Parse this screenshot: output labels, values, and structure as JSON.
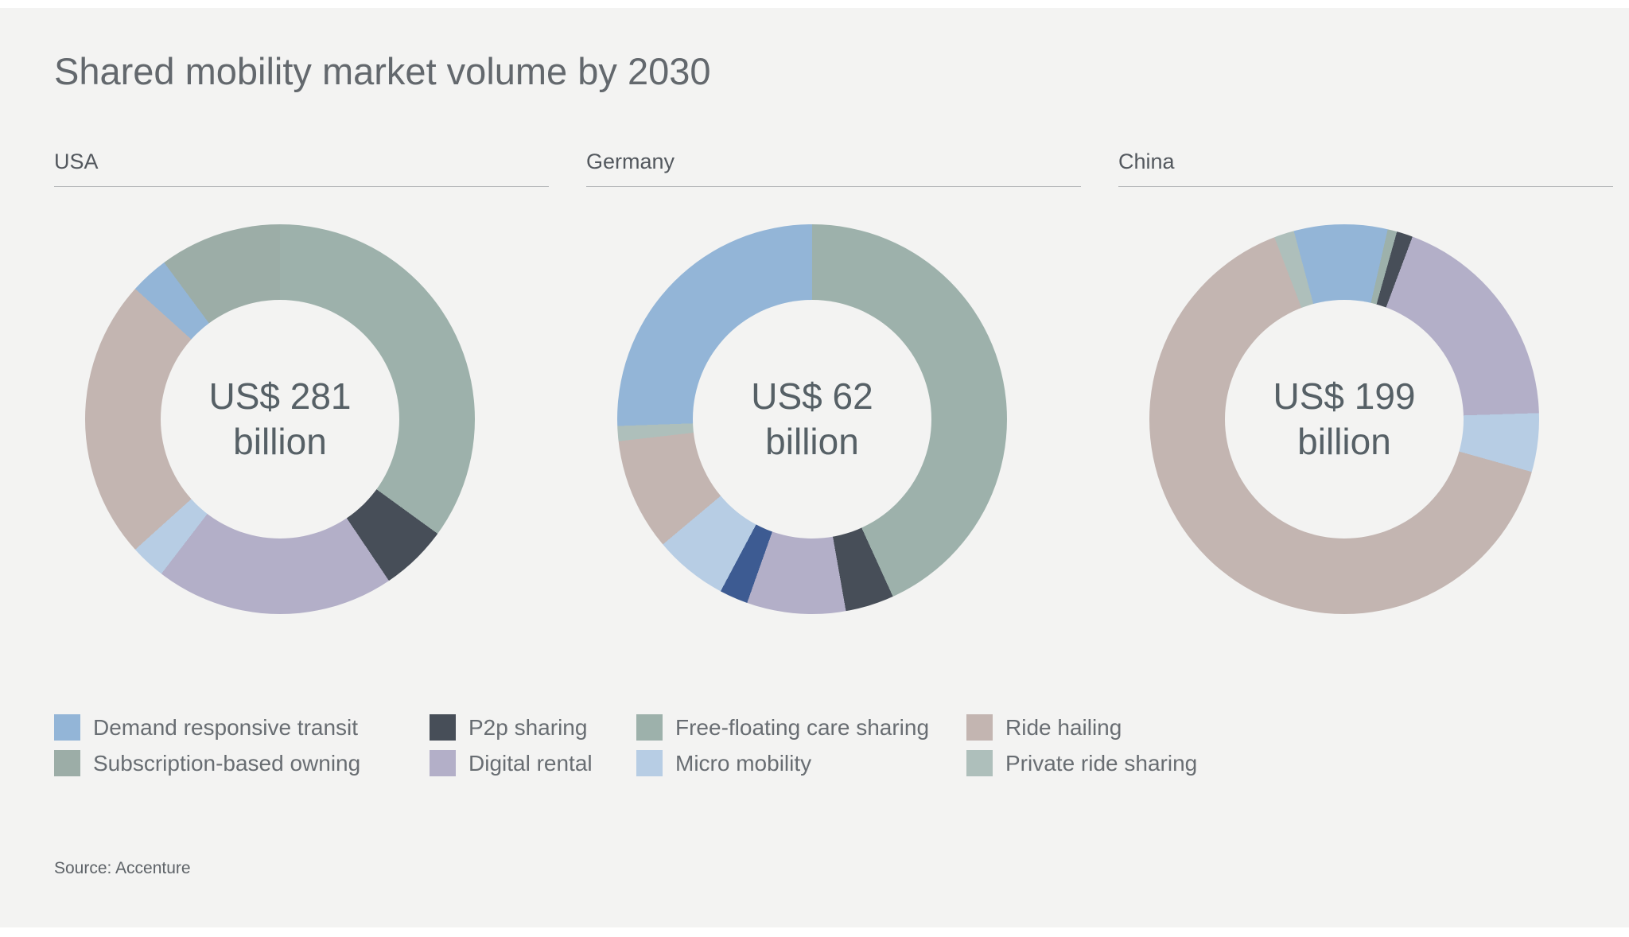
{
  "title": "Shared mobility market volume by 2030",
  "source": "Source: Accenture",
  "background": "#f3f3f2",
  "colors": {
    "demand_responsive_transit": "#93b5d7",
    "p2p_sharing": "#474e58",
    "free_floating_care_sharing": "#9db1ab",
    "ride_hailing": "#c3b5b1",
    "subscription_based_owning": "#9cada7",
    "digital_rental": "#b3afc8",
    "micro_mobility": "#b7cde4",
    "private_ride_sharing": "#aebfbb",
    "unlabeled": "#3d5b92"
  },
  "legend": {
    "items": [
      {
        "label": "Demand responsive transit",
        "color_key": "demand_responsive_transit"
      },
      {
        "label": "Subscription-based owning",
        "color_key": "subscription_based_owning"
      },
      {
        "label": "P2p sharing",
        "color_key": "p2p_sharing"
      },
      {
        "label": "Digital rental",
        "color_key": "digital_rental"
      },
      {
        "label": "Free-floating care sharing",
        "color_key": "free_floating_care_sharing"
      },
      {
        "label": "Micro mobility",
        "color_key": "micro_mobility"
      },
      {
        "label": "Ride hailing",
        "color_key": "ride_hailing"
      },
      {
        "label": "Private ride sharing",
        "color_key": "private_ride_sharing"
      }
    ]
  },
  "chart_data": [
    {
      "type": "donut",
      "country": "USA",
      "center_line1": "US$ 281",
      "center_line2": "billion",
      "center_label": "US$ 281 billion",
      "start_angle_deg": -36.5,
      "segments": [
        {
          "label": "Subscription-based owning",
          "color_key": "subscription_based_owning",
          "deg": 36.5,
          "share_pct": 10.1
        },
        {
          "label": "Free-floating care sharing",
          "color_key": "free_floating_care_sharing",
          "deg": 126.0,
          "share_pct": 35.0
        },
        {
          "label": "P2p sharing",
          "color_key": "p2p_sharing",
          "deg": 20.0,
          "share_pct": 5.6
        },
        {
          "label": "Digital rental",
          "color_key": "digital_rental",
          "deg": 71.5,
          "share_pct": 19.9
        },
        {
          "label": "Micro mobility",
          "color_key": "micro_mobility",
          "deg": 10.5,
          "share_pct": 2.9
        },
        {
          "label": "Ride hailing",
          "color_key": "ride_hailing",
          "deg": 84.0,
          "share_pct": 23.3
        },
        {
          "label": "Demand responsive transit",
          "color_key": "demand_responsive_transit",
          "deg": 11.5,
          "share_pct": 3.2
        }
      ]
    },
    {
      "type": "donut",
      "country": "Germany",
      "center_line1": "US$ 62",
      "center_line2": "billion",
      "center_label": "US$ 62 billion",
      "start_angle_deg": 0,
      "segments": [
        {
          "label": "Free-floating care sharing",
          "color_key": "free_floating_care_sharing",
          "deg": 155.5,
          "share_pct": 43.2
        },
        {
          "label": "P2p sharing",
          "color_key": "p2p_sharing",
          "deg": 14.5,
          "share_pct": 4.0
        },
        {
          "label": "Digital rental",
          "color_key": "digital_rental",
          "deg": 29.5,
          "share_pct": 8.2
        },
        {
          "label": "",
          "color_key": "unlabeled",
          "deg": 8.5,
          "share_pct": 2.4
        },
        {
          "label": "Micro mobility",
          "color_key": "micro_mobility",
          "deg": 22.0,
          "share_pct": 6.1
        },
        {
          "label": "Ride hailing",
          "color_key": "ride_hailing",
          "deg": 33.5,
          "share_pct": 9.3
        },
        {
          "label": "Private ride sharing",
          "color_key": "private_ride_sharing",
          "deg": 4.5,
          "share_pct": 1.3
        },
        {
          "label": "Demand responsive transit",
          "color_key": "demand_responsive_transit",
          "deg": 92.0,
          "share_pct": 25.6
        }
      ]
    },
    {
      "type": "donut",
      "country": "China",
      "center_line1": "US$ 199",
      "center_line2": "billion",
      "center_label": "US$ 199 billion",
      "start_angle_deg": -15,
      "segments": [
        {
          "label": "Demand responsive transit",
          "color_key": "demand_responsive_transit",
          "deg": 27.9,
          "share_pct": 7.8
        },
        {
          "label": "Free-floating care sharing",
          "color_key": "free_floating_care_sharing",
          "deg": 2.8,
          "share_pct": 0.8
        },
        {
          "label": "P2p sharing",
          "color_key": "p2p_sharing",
          "deg": 4.8,
          "share_pct": 1.3
        },
        {
          "label": "Digital rental",
          "color_key": "digital_rental",
          "deg": 67.7,
          "share_pct": 18.8
        },
        {
          "label": "Micro mobility",
          "color_key": "micro_mobility",
          "deg": 17.5,
          "share_pct": 4.9
        },
        {
          "label": "Ride hailing",
          "color_key": "ride_hailing",
          "deg": 233.3,
          "share_pct": 64.8
        },
        {
          "label": "Private ride sharing",
          "color_key": "private_ride_sharing",
          "deg": 6.0,
          "share_pct": 1.7
        }
      ]
    }
  ]
}
